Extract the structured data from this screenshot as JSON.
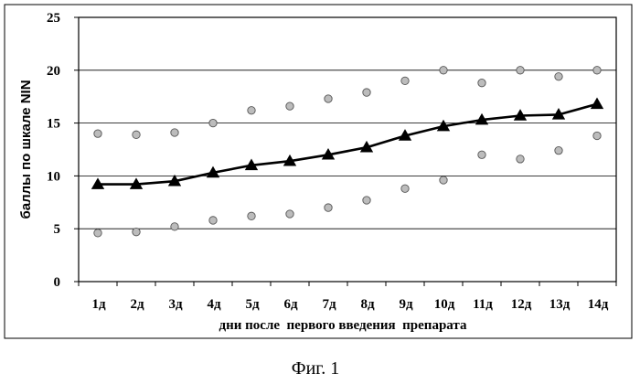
{
  "chart_data": {
    "type": "line",
    "title": "",
    "xlabel": "дни после  первого введения  препарата",
    "ylabel": "баллы по шкале NIN",
    "categories": [
      "1д",
      "2д",
      "3д",
      "4д",
      "5д",
      "6д",
      "7д",
      "8д",
      "9д",
      "10д",
      "11д",
      "12д",
      "13д",
      "14д"
    ],
    "y_ticks": [
      "0",
      "5",
      "10",
      "15",
      "20",
      "25"
    ],
    "ylim": [
      0,
      25
    ],
    "grid": true,
    "legend": "none",
    "series": [
      {
        "role": "mean",
        "marker": "triangle",
        "line": "solid",
        "color": "#000000",
        "values": [
          9.2,
          9.2,
          9.5,
          10.3,
          11.0,
          11.4,
          12.0,
          12.7,
          13.8,
          14.7,
          15.3,
          15.7,
          15.8,
          16.8
        ]
      },
      {
        "role": "upper",
        "marker": "circle",
        "line": "none",
        "color": "#bcbcbc",
        "values": [
          14.0,
          13.9,
          14.1,
          15.0,
          16.2,
          16.6,
          17.3,
          17.9,
          19.0,
          20.0,
          18.8,
          20.0,
          19.4,
          20.0
        ]
      },
      {
        "role": "lower",
        "marker": "circle",
        "line": "none",
        "color": "#bcbcbc",
        "values": [
          4.6,
          4.7,
          5.2,
          5.8,
          6.2,
          6.4,
          7.0,
          7.7,
          8.8,
          9.6,
          12.0,
          11.6,
          12.4,
          13.8
        ]
      }
    ]
  },
  "figure": {
    "caption": "Фиг. 1"
  }
}
